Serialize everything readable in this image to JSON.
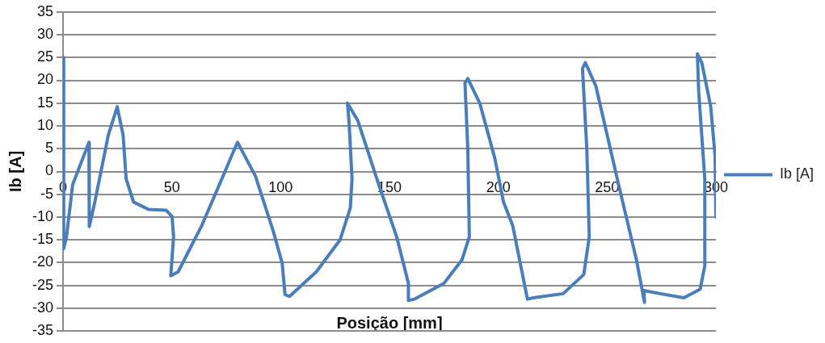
{
  "chart_data": {
    "type": "line",
    "xlabel": "Posição [mm]",
    "ylabel": "Ib [A]",
    "xlim": [
      0,
      300
    ],
    "xticks": [
      0,
      50,
      100,
      150,
      200,
      250,
      300
    ],
    "ylim": [
      -35,
      35
    ],
    "yticks": [
      -35,
      -30,
      -25,
      -20,
      -15,
      -10,
      -5,
      0,
      5,
      10,
      15,
      20,
      25,
      30,
      35
    ],
    "grid": "y",
    "legend": "right",
    "marker": "none",
    "line_style": "solid",
    "series": [
      {
        "name": "Ib [A]",
        "color": "#4a7ebb",
        "x": [
          0,
          0.3,
          1.6,
          4.4,
          11.9,
          12.2,
          11.9,
          14.6,
          20.8,
          24.9,
          27.6,
          29,
          32.4,
          39.2,
          47.4,
          50.1,
          50.8,
          49.5,
          52.9,
          63.8,
          74.7,
          77.5,
          80.2,
          88.4,
          96.6,
          100.7,
          102,
          104.1,
          116.4,
          127.3,
          132,
          132.8,
          131.4,
          130.7,
          135.5,
          145.1,
          153.3,
          158.7,
          158.7,
          161.4,
          175.1,
          183.3,
          186.7,
          186,
          184.7,
          186,
          191.5,
          198.4,
          202.4,
          206.6,
          213.4,
          216.1,
          229.8,
          239.3,
          241.8,
          240.7,
          238.7,
          240,
          244.8,
          255.3,
          263.5,
          267.2,
          266.9,
          274.4,
          285.3,
          292.8,
          294.9,
          294.9,
          292.1,
          291.5,
          293.5,
          297.6,
          299.6,
          300
        ],
        "values": [
          25,
          -16.9,
          -14.3,
          -2.9,
          6.4,
          1,
          -12.1,
          -6.7,
          8,
          14.2,
          8,
          -1.6,
          -6.7,
          -8.3,
          -8.5,
          -9.9,
          -14.3,
          -22.9,
          -22,
          -11.8,
          0.3,
          3.5,
          6.4,
          -1,
          -13.1,
          -20.1,
          -27,
          -27.4,
          -22,
          -15,
          -8,
          -1.6,
          11.1,
          15,
          11.1,
          -2.9,
          -14.3,
          -24.5,
          -28.3,
          -28,
          -24.5,
          -19.4,
          -14.3,
          4.8,
          19.4,
          20.4,
          15,
          2.9,
          -6.7,
          -11.8,
          -28,
          -27.7,
          -26.8,
          -22.6,
          -14.3,
          4.8,
          22.6,
          23.9,
          18.8,
          -2.9,
          -19.4,
          -28.7,
          -26.1,
          -26.8,
          -27.7,
          -25.8,
          -20.7,
          -1.6,
          17.5,
          25.8,
          23.9,
          14.3,
          3.5,
          -10
        ]
      }
    ]
  }
}
